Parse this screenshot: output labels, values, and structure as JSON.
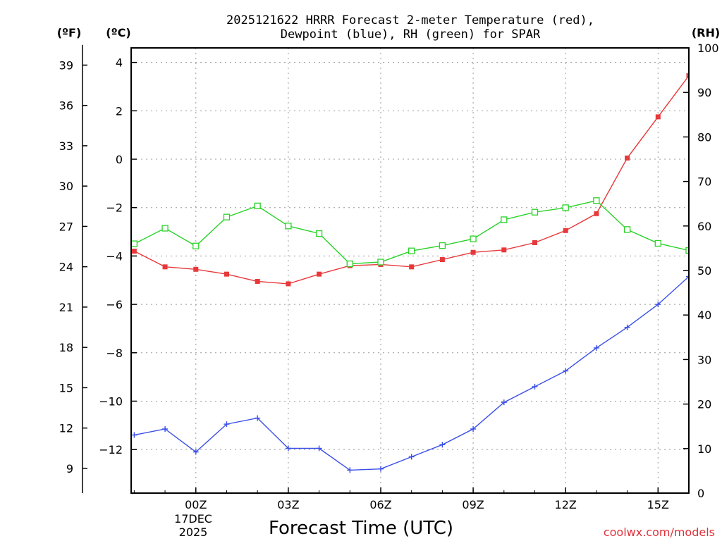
{
  "chart_data": {
    "type": "line",
    "title_line1": "2025121622 HRRR Forecast 2-meter Temperature (red),",
    "title_line2": "Dewpoint (blue), RH (green) for SPAR",
    "xlabel": "Forecast Time (UTC)",
    "credit": "coolwx.com/models",
    "date_label_day": "17DEC",
    "date_label_year": "2025",
    "left_f_label": "(ºF)",
    "left_c_label": "(ºC)",
    "right_rh_label": "(RH)",
    "x_hours": [
      -2,
      -1,
      0,
      1,
      2,
      3,
      4,
      5,
      6,
      7,
      8,
      9,
      10,
      11,
      12,
      13,
      14,
      15,
      16
    ],
    "xlim": [
      -2.1,
      16
    ],
    "x_ticks": [
      {
        "hour": 0,
        "label": "00Z"
      },
      {
        "hour": 3,
        "label": "03Z"
      },
      {
        "hour": 6,
        "label": "06Z"
      },
      {
        "hour": 9,
        "label": "09Z"
      },
      {
        "hour": 12,
        "label": "12Z"
      },
      {
        "hour": 15,
        "label": "15Z"
      }
    ],
    "ylim_c": [
      -13.8,
      4.6
    ],
    "yticks_c": [
      4,
      2,
      0,
      -2,
      -4,
      -6,
      -8,
      -10,
      -12
    ],
    "yticks_f": [
      39,
      36,
      33,
      30,
      27,
      24,
      21,
      18,
      15,
      12,
      9
    ],
    "ylim_rh": [
      0,
      100
    ],
    "yticks_rh": [
      0,
      10,
      20,
      30,
      40,
      50,
      60,
      70,
      80,
      90,
      100
    ],
    "series": [
      {
        "name": "Temperature",
        "unit": "C",
        "color": "#e8383a",
        "values": [
          -3.8,
          -4.45,
          -4.55,
          -4.75,
          -5.05,
          -5.15,
          -4.75,
          -4.4,
          -4.35,
          -4.45,
          -4.15,
          -3.85,
          -3.75,
          -3.45,
          -2.95,
          -2.25,
          0.05,
          1.75,
          3.45
        ]
      },
      {
        "name": "Dewpoint",
        "unit": "C",
        "color": "#3a4ee8",
        "values": [
          -11.4,
          -11.15,
          -12.1,
          -10.95,
          -10.7,
          -11.95,
          -11.95,
          -12.85,
          -12.8,
          -12.3,
          -11.8,
          -11.15,
          -10.05,
          -9.4,
          -8.75,
          -7.8,
          -6.95,
          -6.0,
          -4.85
        ]
      },
      {
        "name": "RH",
        "unit": "%",
        "color": "#28d228",
        "values": [
          56,
          59.5,
          55.5,
          62,
          64.5,
          60,
          58.3,
          51.5,
          51.9,
          54.4,
          55.6,
          57.1,
          61.4,
          63.1,
          64.1,
          65.7,
          59.2,
          56.1,
          54.5
        ]
      }
    ]
  }
}
